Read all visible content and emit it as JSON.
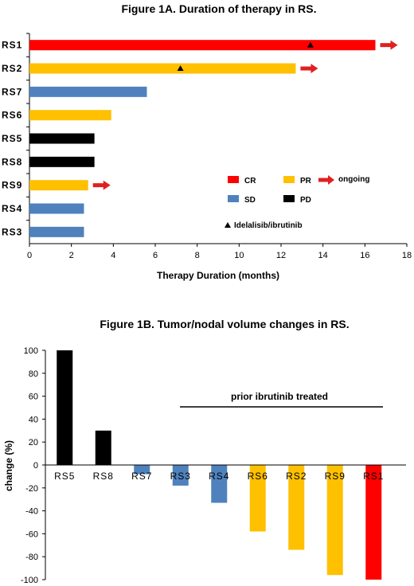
{
  "chart_data": [
    {
      "type": "bar",
      "orientation": "horizontal",
      "title": "Figure 1A. Duration of therapy in RS.",
      "xlabel": "Therapy Duration (months)",
      "ylabel": "",
      "xlim": [
        0,
        18
      ],
      "xticks": [
        "0",
        "2",
        "4",
        "6",
        "8",
        "10",
        "12",
        "14",
        "16",
        "18"
      ],
      "categories": [
        "RS1",
        "RS2",
        "RS7",
        "RS6",
        "RS5",
        "RS8",
        "RS9",
        "RS4",
        "RS3"
      ],
      "values": [
        16.5,
        12.7,
        5.6,
        3.9,
        3.1,
        3.1,
        2.8,
        2.6,
        2.6
      ],
      "response": [
        "CR",
        "PR",
        "SD",
        "PR",
        "PD",
        "PD",
        "PR",
        "SD",
        "SD"
      ],
      "ongoing": [
        true,
        true,
        false,
        false,
        false,
        false,
        true,
        false,
        false
      ],
      "idelalisib_ibrutinib_marker": [
        13.4,
        7.2,
        null,
        null,
        null,
        null,
        null,
        null,
        null
      ],
      "legend": {
        "placement": "center-right",
        "items": [
          {
            "label": "CR",
            "color": "#ff0000",
            "kind": "bar"
          },
          {
            "label": "PR",
            "color": "#ffc000",
            "kind": "bar"
          },
          {
            "label": "ongoing",
            "color": "#e02020",
            "kind": "arrow"
          },
          {
            "label": "SD",
            "color": "#4f81bd",
            "kind": "bar"
          },
          {
            "label": "PD",
            "color": "#000000",
            "kind": "bar"
          },
          {
            "label": "Idelalisib/ibrutinib",
            "color": "#000000",
            "kind": "triangle"
          }
        ]
      },
      "grid": false
    },
    {
      "type": "bar",
      "title": "Figure 1B. Tumor/nodal volume changes in RS.",
      "xlabel": "",
      "ylabel": "change (%)",
      "ylim": [
        -100,
        100
      ],
      "yticks": [
        "100",
        "80",
        "60",
        "40",
        "20",
        "0",
        "-20",
        "-40",
        "-60",
        "-80",
        "-100"
      ],
      "categories": [
        "RS5",
        "RS8",
        "RS7",
        "RS3",
        "RS4",
        "RS6",
        "RS2",
        "RS9",
        "RS1"
      ],
      "values": [
        100,
        30,
        -8,
        -18,
        -33,
        -58,
        -74,
        -96,
        -100
      ],
      "response": [
        "PD",
        "PD",
        "SD",
        "SD",
        "SD",
        "PR",
        "PR",
        "PR",
        "CR"
      ],
      "annotation": "prior ibrutinib treated",
      "grid": false
    }
  ],
  "colors": {
    "CR": "#ff0000",
    "PR": "#ffc000",
    "SD": "#4f81bd",
    "PD": "#000000",
    "arrow": "#e02020"
  }
}
